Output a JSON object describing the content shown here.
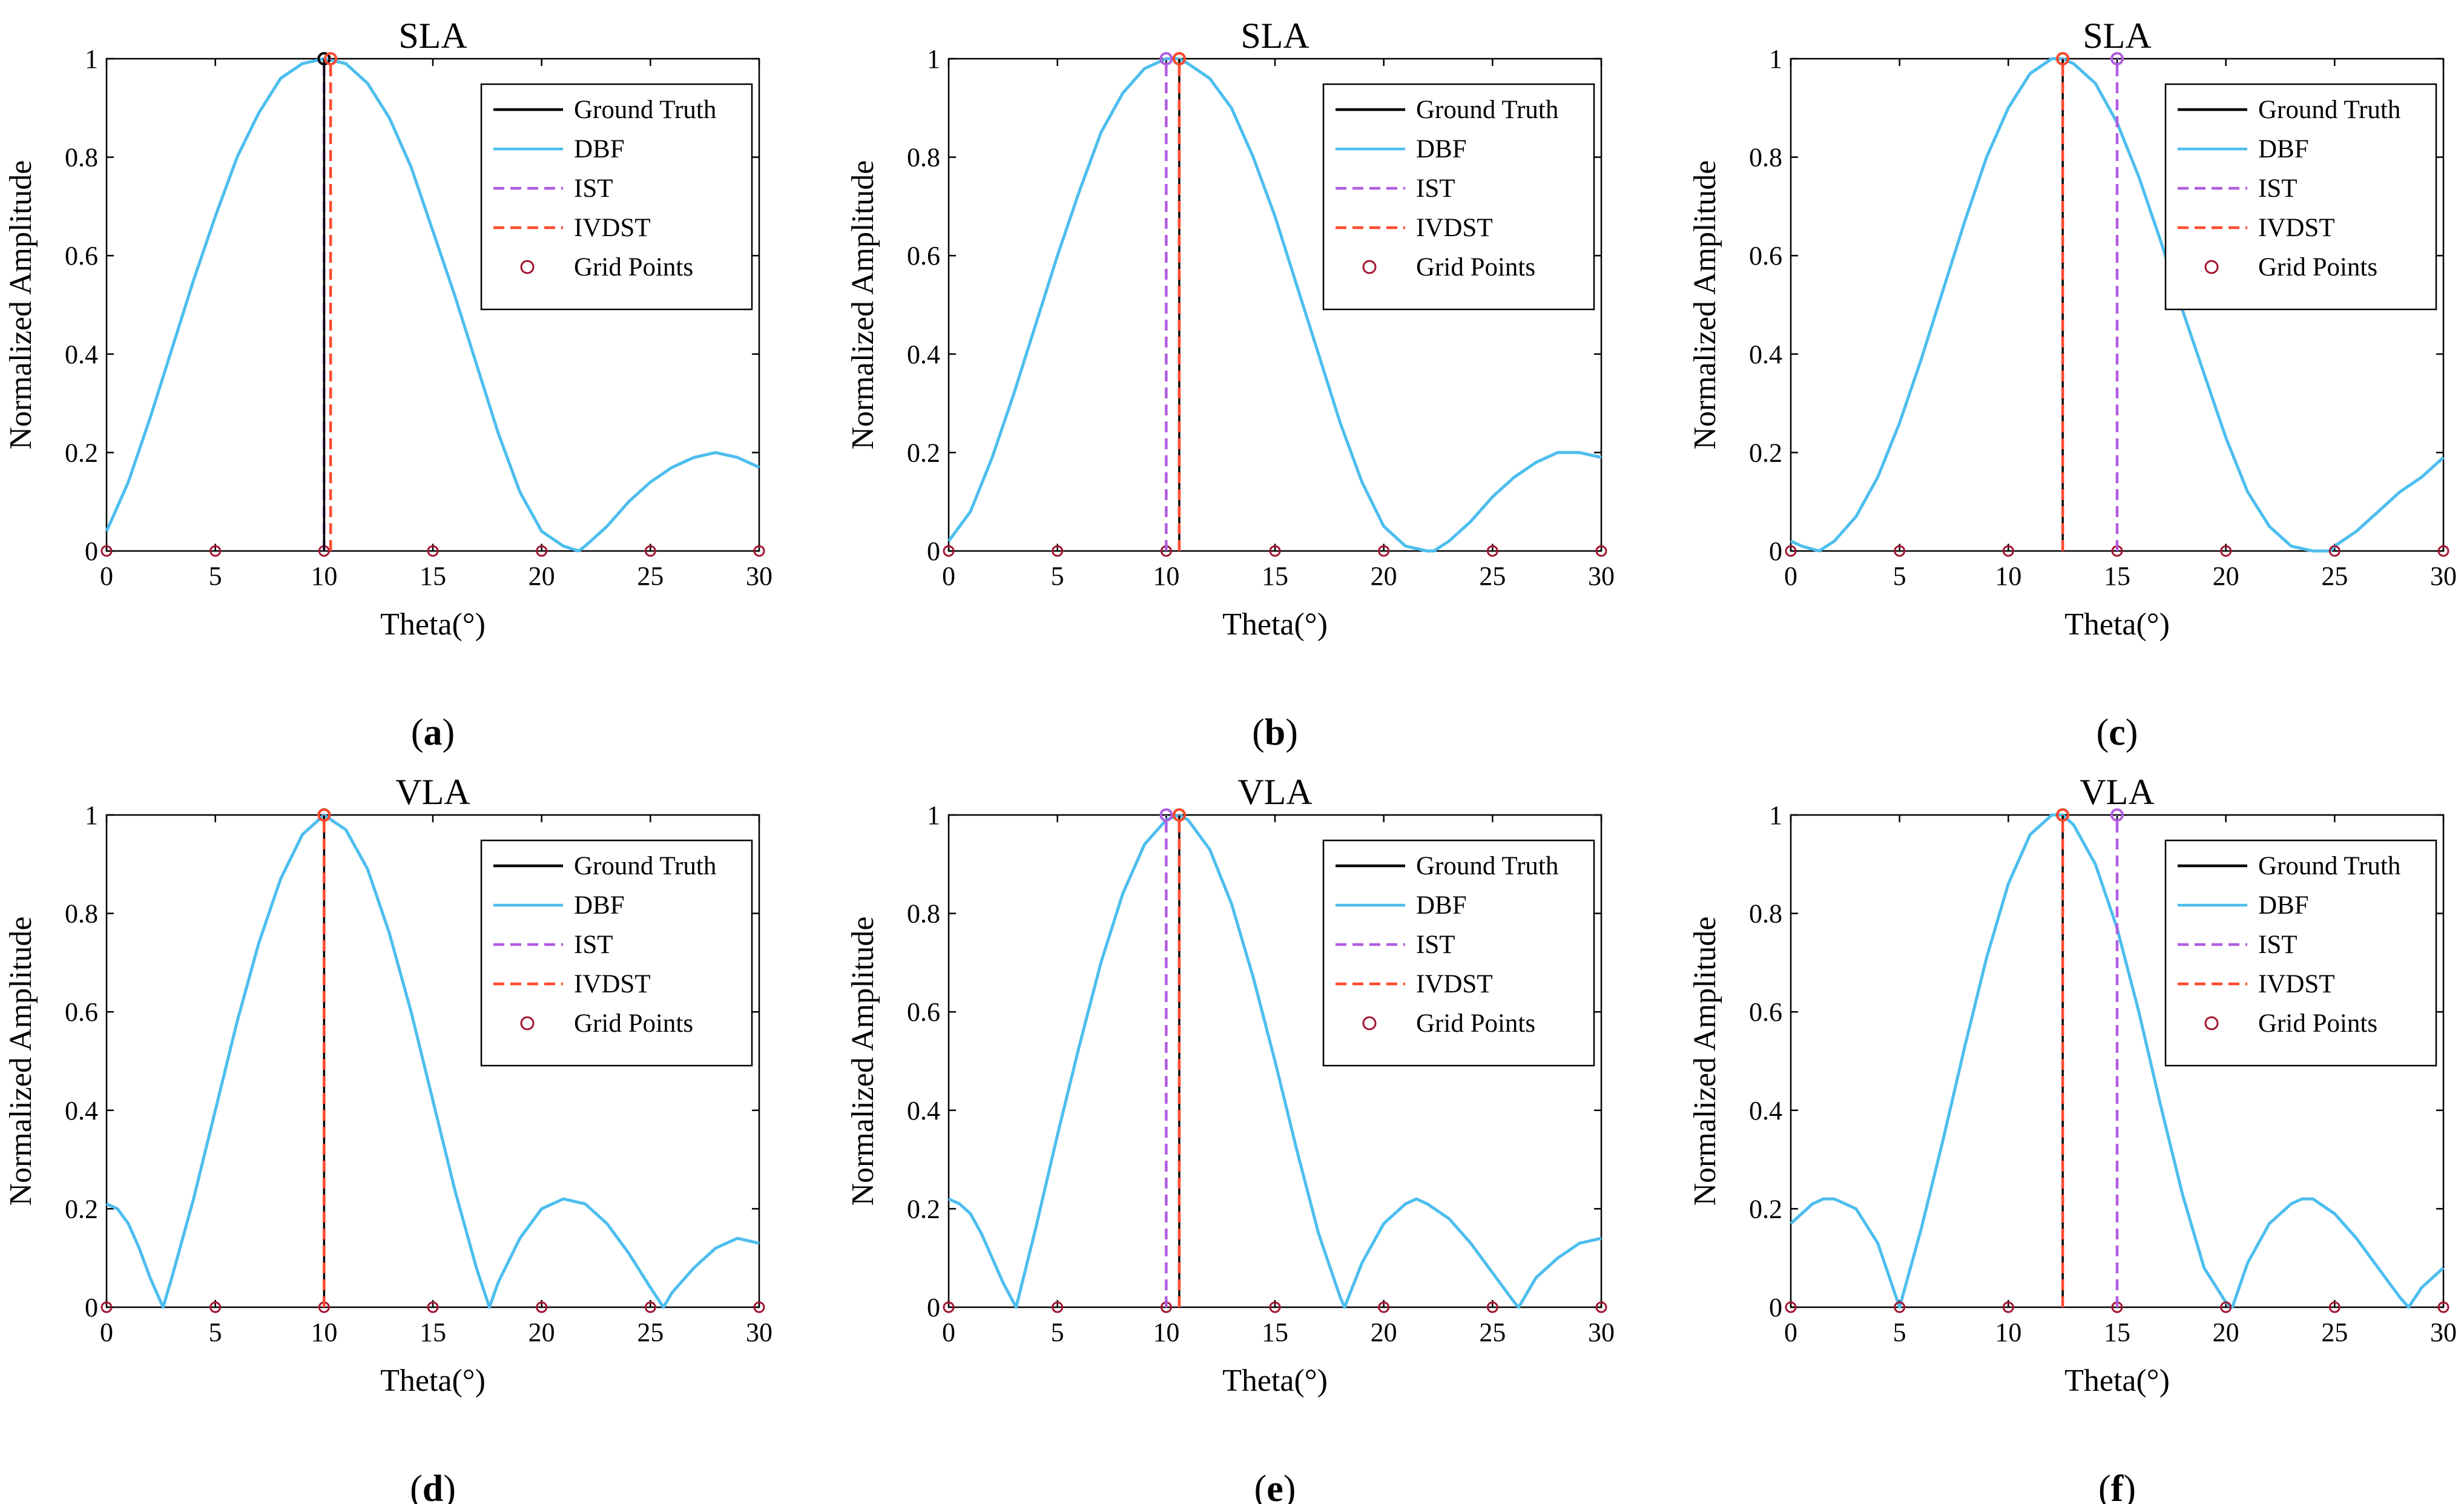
{
  "figure": {
    "x_tick_labels": [
      "0",
      "5",
      "10",
      "15",
      "20",
      "25",
      "30"
    ],
    "y_tick_labels": [
      "0",
      "0.2",
      "0.4",
      "0.6",
      "0.8",
      "1"
    ],
    "xlabel": "Theta(°)",
    "ylabel": "Normalized Amplitude",
    "legend_entries": [
      "Ground Truth",
      "DBF",
      "IST",
      "IVDST",
      "Grid Points"
    ],
    "colors": {
      "ground_truth": "#000000",
      "dbf": "#4DBEEE",
      "ist": "#B15CE0",
      "ivdst": "#FF4A2E",
      "grid_points": "#A2142F"
    }
  },
  "chart_data": [
    {
      "panel": "a",
      "caption_prefix": "(",
      "caption_letter": "a",
      "caption_suffix": ")",
      "type": "line",
      "title": "SLA",
      "xlabel": "Theta(°)",
      "ylabel": "Normalized Amplitude",
      "xlim": [
        0,
        30
      ],
      "ylim": [
        0,
        1
      ],
      "legend_position": "top-right",
      "ground_truth": 10.0,
      "ist": 10.0,
      "ivdst": 10.3,
      "grid_points": [
        0,
        5,
        10,
        15,
        20,
        25,
        30
      ],
      "dbf": {
        "theta": [
          0,
          1,
          2,
          3,
          4,
          5,
          6,
          7,
          8,
          9,
          10,
          11,
          12,
          13,
          14,
          15,
          16,
          17,
          18,
          19,
          20,
          21,
          21.7,
          22,
          23,
          24,
          25,
          26,
          27,
          28,
          29,
          30
        ],
        "amp": [
          0.04,
          0.14,
          0.27,
          0.41,
          0.55,
          0.68,
          0.8,
          0.89,
          0.96,
          0.99,
          1.0,
          0.99,
          0.95,
          0.88,
          0.78,
          0.65,
          0.52,
          0.38,
          0.24,
          0.12,
          0.04,
          0.01,
          0.0,
          0.01,
          0.05,
          0.1,
          0.14,
          0.17,
          0.19,
          0.2,
          0.19,
          0.17
        ]
      }
    },
    {
      "panel": "b",
      "caption_prefix": "(",
      "caption_letter": "b",
      "caption_suffix": ")",
      "type": "line",
      "title": "SLA",
      "xlabel": "Theta(°)",
      "ylabel": "Normalized Amplitude",
      "xlim": [
        0,
        30
      ],
      "ylim": [
        0,
        1
      ],
      "legend_position": "top-right",
      "ground_truth": 10.6,
      "ist": 10.0,
      "ivdst": 10.6,
      "grid_points": [
        0,
        5,
        10,
        15,
        20,
        25,
        30
      ],
      "dbf": {
        "theta": [
          0,
          1,
          2,
          3,
          4,
          5,
          6,
          7,
          8,
          9,
          10,
          10.6,
          11,
          12,
          13,
          14,
          15,
          16,
          17,
          18,
          19,
          20,
          21,
          22,
          22.3,
          23,
          24,
          25,
          26,
          27,
          28,
          29,
          30
        ],
        "amp": [
          0.02,
          0.08,
          0.19,
          0.32,
          0.46,
          0.6,
          0.73,
          0.85,
          0.93,
          0.98,
          1.0,
          1.0,
          0.99,
          0.96,
          0.9,
          0.8,
          0.68,
          0.54,
          0.4,
          0.26,
          0.14,
          0.05,
          0.01,
          0.0,
          0.0,
          0.02,
          0.06,
          0.11,
          0.15,
          0.18,
          0.2,
          0.2,
          0.19
        ]
      }
    },
    {
      "panel": "c",
      "caption_prefix": "(",
      "caption_letter": "c",
      "caption_suffix": ")",
      "type": "line",
      "title": "SLA",
      "xlabel": "Theta(°)",
      "ylabel": "Normalized Amplitude",
      "xlim": [
        0,
        30
      ],
      "ylim": [
        0,
        1
      ],
      "legend_position": "top-right",
      "ground_truth": 12.5,
      "ist": 15.0,
      "ivdst": 12.5,
      "grid_points": [
        0,
        5,
        10,
        15,
        20,
        25,
        30
      ],
      "dbf": {
        "theta": [
          0,
          0.5,
          1.3,
          2,
          3,
          4,
          5,
          6,
          7,
          8,
          9,
          10,
          11,
          12,
          12.5,
          13,
          14,
          15,
          16,
          17,
          18,
          19,
          20,
          21,
          22,
          23,
          24,
          24.8,
          25,
          26,
          27,
          28,
          29,
          30
        ],
        "amp": [
          0.02,
          0.01,
          0.0,
          0.02,
          0.07,
          0.15,
          0.26,
          0.39,
          0.53,
          0.67,
          0.8,
          0.9,
          0.97,
          1.0,
          1.0,
          0.99,
          0.95,
          0.87,
          0.76,
          0.63,
          0.49,
          0.36,
          0.23,
          0.12,
          0.05,
          0.01,
          0.0,
          0.0,
          0.01,
          0.04,
          0.08,
          0.12,
          0.15,
          0.19
        ]
      }
    },
    {
      "panel": "d",
      "caption_prefix": "(",
      "caption_letter": "d",
      "caption_suffix": ")",
      "type": "line",
      "title": "VLA",
      "xlabel": "Theta(°)",
      "ylabel": "Normalized Amplitude",
      "xlim": [
        0,
        30
      ],
      "ylim": [
        0,
        1
      ],
      "legend_position": "top-right",
      "ground_truth": 10.0,
      "ist": 10.0,
      "ivdst": 10.0,
      "grid_points": [
        0,
        5,
        10,
        15,
        20,
        25,
        30
      ],
      "dbf": {
        "theta": [
          0,
          0.5,
          1,
          1.5,
          2,
          2.6,
          3,
          4,
          5,
          6,
          7,
          8,
          9,
          10,
          11,
          12,
          13,
          14,
          15,
          16,
          17,
          17.6,
          18,
          19,
          20,
          21,
          22,
          23,
          24,
          25,
          25.6,
          26,
          27,
          28,
          29,
          30
        ],
        "amp": [
          0.21,
          0.2,
          0.17,
          0.12,
          0.06,
          0.0,
          0.06,
          0.22,
          0.4,
          0.58,
          0.74,
          0.87,
          0.96,
          1.0,
          0.97,
          0.89,
          0.76,
          0.6,
          0.42,
          0.24,
          0.08,
          0.0,
          0.05,
          0.14,
          0.2,
          0.22,
          0.21,
          0.17,
          0.11,
          0.04,
          0.0,
          0.03,
          0.08,
          0.12,
          0.14,
          0.13
        ]
      }
    },
    {
      "panel": "e",
      "caption_prefix": "(",
      "caption_letter": "e",
      "caption_suffix": ")",
      "type": "line",
      "title": "VLA",
      "xlabel": "Theta(°)",
      "ylabel": "Normalized Amplitude",
      "xlim": [
        0,
        30
      ],
      "ylim": [
        0,
        1
      ],
      "legend_position": "top-right",
      "ground_truth": 10.6,
      "ist": 10.0,
      "ivdst": 10.6,
      "grid_points": [
        0,
        5,
        10,
        15,
        20,
        25,
        30
      ],
      "dbf": {
        "theta": [
          0,
          0.5,
          1,
          1.5,
          2,
          2.5,
          3.1,
          4,
          5,
          6,
          7,
          8,
          9,
          10,
          10.6,
          11,
          12,
          13,
          14,
          15,
          16,
          17,
          18,
          18.2,
          19,
          20,
          21,
          21.5,
          22,
          23,
          24,
          25,
          26,
          26.2,
          27,
          28,
          29,
          30
        ],
        "amp": [
          0.22,
          0.21,
          0.19,
          0.15,
          0.1,
          0.05,
          0.0,
          0.16,
          0.35,
          0.53,
          0.7,
          0.84,
          0.94,
          0.99,
          1.0,
          0.99,
          0.93,
          0.82,
          0.67,
          0.5,
          0.32,
          0.15,
          0.02,
          0.0,
          0.09,
          0.17,
          0.21,
          0.22,
          0.21,
          0.18,
          0.13,
          0.07,
          0.01,
          0.0,
          0.06,
          0.1,
          0.13,
          0.14
        ]
      }
    },
    {
      "panel": "f",
      "caption_prefix": "(",
      "caption_letter": "f",
      "caption_suffix": ")",
      "type": "line",
      "title": "VLA",
      "xlabel": "Theta(°)",
      "ylabel": "Normalized Amplitude",
      "xlim": [
        0,
        30
      ],
      "ylim": [
        0,
        1
      ],
      "legend_position": "top-right",
      "ground_truth": 12.5,
      "ist": 15.0,
      "ivdst": 12.5,
      "grid_points": [
        0,
        5,
        10,
        15,
        20,
        25,
        30
      ],
      "dbf": {
        "theta": [
          0,
          0.5,
          1,
          1.5,
          2,
          3,
          4,
          5,
          6,
          7,
          8,
          9,
          10,
          11,
          12,
          12.5,
          13,
          14,
          15,
          16,
          17,
          18,
          19,
          20,
          20.3,
          21,
          22,
          23,
          23.5,
          24,
          25,
          26,
          27,
          28,
          28.4,
          29,
          30
        ],
        "amp": [
          0.17,
          0.19,
          0.21,
          0.22,
          0.22,
          0.2,
          0.13,
          0.0,
          0.16,
          0.34,
          0.53,
          0.71,
          0.86,
          0.96,
          1.0,
          1.0,
          0.98,
          0.9,
          0.77,
          0.6,
          0.41,
          0.23,
          0.08,
          0.01,
          0.0,
          0.09,
          0.17,
          0.21,
          0.22,
          0.22,
          0.19,
          0.14,
          0.08,
          0.02,
          0.0,
          0.04,
          0.08
        ]
      }
    }
  ]
}
